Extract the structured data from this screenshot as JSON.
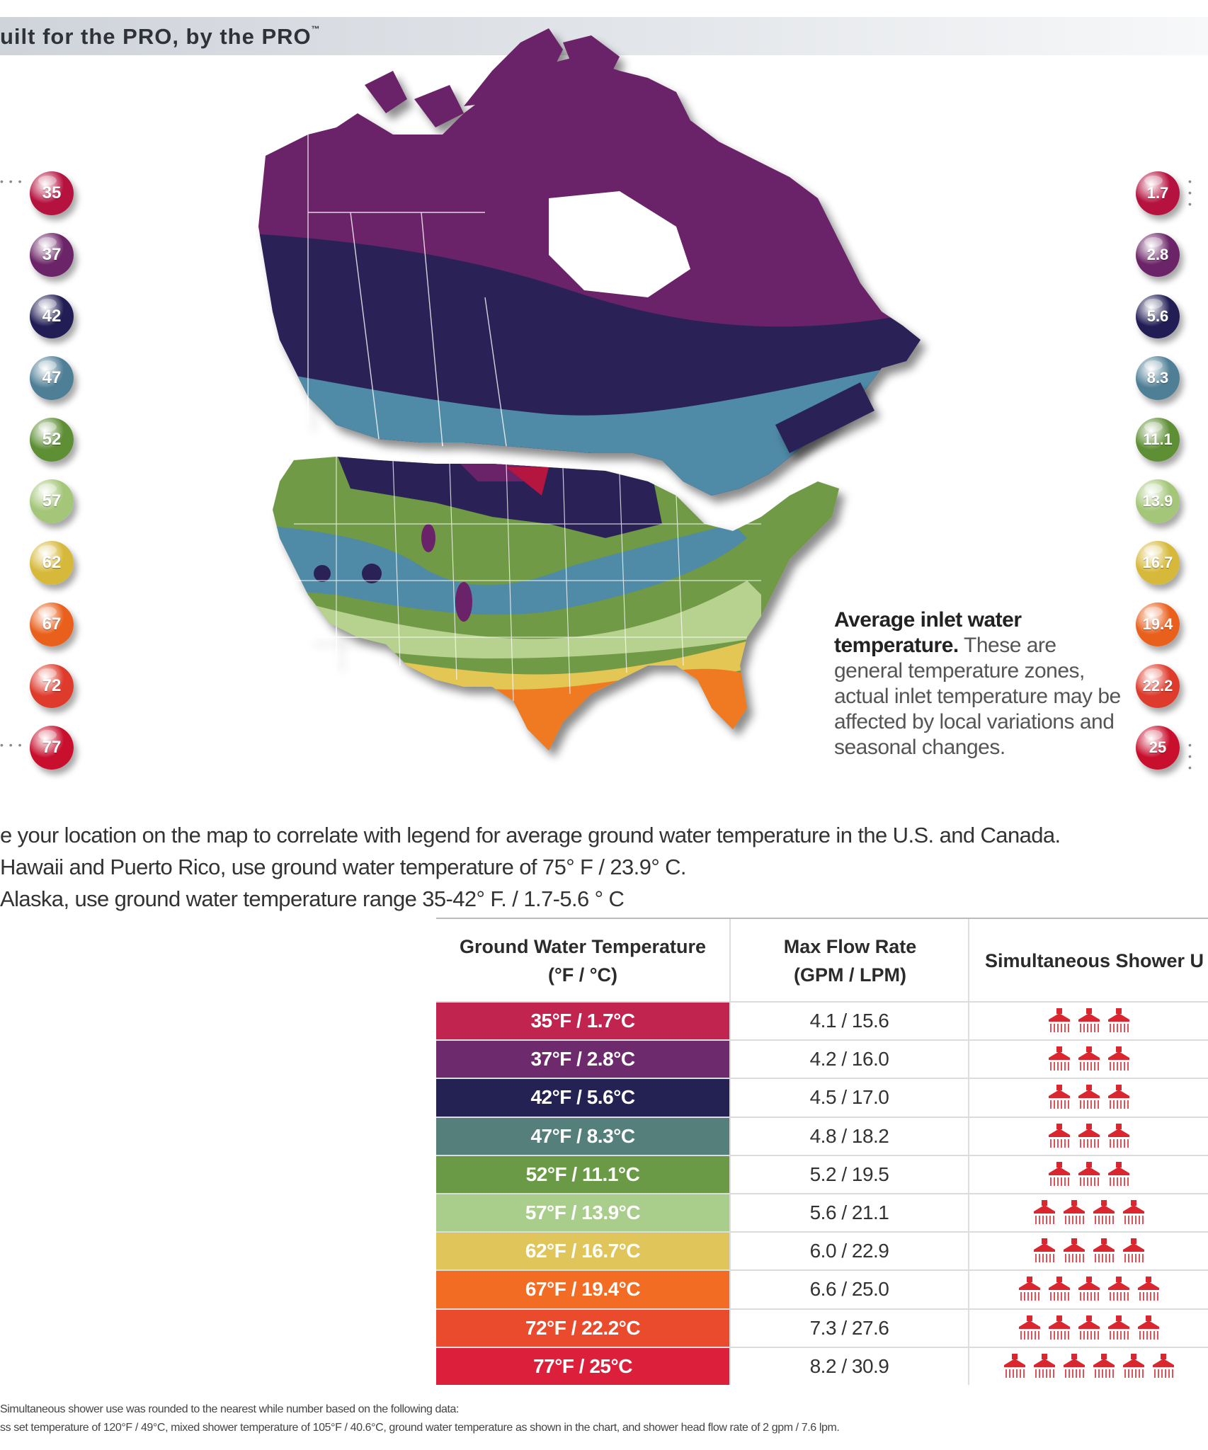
{
  "banner": {
    "tagline": "uilt for the PRO, by the PRO",
    "tm": "™"
  },
  "legend_left": [
    "35",
    "37",
    "42",
    "47",
    "52",
    "57",
    "62",
    "67",
    "72",
    "77"
  ],
  "legend_right": [
    "1.7",
    "2.8",
    "5.6",
    "8.3",
    "11.1",
    "13.9",
    "16.7",
    "19.4",
    "22.2",
    "25"
  ],
  "legend_colors": [
    "#b5123f",
    "#6b2467",
    "#221e55",
    "#4f7f96",
    "#5e8f35",
    "#a4c678",
    "#d6b93a",
    "#e9601d",
    "#de3b2c",
    "#c8102e"
  ],
  "caption": {
    "bold": "Average inlet water temperature.",
    "text": " These are general temperature zones, actual inlet temperature may be affected by local variations and seasonal changes."
  },
  "notes": [
    "e your location on the map to correlate with legend for average ground water temperature in the U.S. and Canada.",
    " Hawaii and Puerto Rico, use ground water temperature of 75° F / 23.9° C.",
    " Alaska, use ground water temperature range 35-42° F. / 1.7-5.6 ° C"
  ],
  "table": {
    "headers": {
      "temp_line1": "Ground Water Temperature",
      "temp_line2": "(°F / °C)",
      "flow_line1": "Max Flow Rate",
      "flow_line2": "(GPM / LPM)",
      "showers": "Simultaneous Shower U"
    },
    "rows": [
      {
        "temp": "35°F / 1.7°C",
        "flow": "4.1 / 15.6",
        "showers": 3,
        "color": "#c0244f"
      },
      {
        "temp": "37°F / 2.8°C",
        "flow": "4.2 / 16.0",
        "showers": 3,
        "color": "#6d2b6d"
      },
      {
        "temp": "42°F / 5.6°C",
        "flow": "4.5 / 17.0",
        "showers": 3,
        "color": "#242253"
      },
      {
        "temp": "47°F / 8.3°C",
        "flow": "4.8 / 18.2",
        "showers": 3,
        "color": "#557f7a"
      },
      {
        "temp": "52°F / 11.1°C",
        "flow": "5.2 / 19.5",
        "showers": 3,
        "color": "#6a9a45"
      },
      {
        "temp": "57°F / 13.9°C",
        "flow": "5.6 / 21.1",
        "showers": 4,
        "color": "#a9cd8a"
      },
      {
        "temp": "62°F / 16.7°C",
        "flow": "6.0 / 22.9",
        "showers": 4,
        "color": "#e0c65a"
      },
      {
        "temp": "67°F / 19.4°C",
        "flow": "6.6 / 25.0",
        "showers": 5,
        "color": "#f36c24"
      },
      {
        "temp": "72°F / 22.2°C",
        "flow": "7.3 / 27.6",
        "showers": 5,
        "color": "#ea4b2c"
      },
      {
        "temp": "77°F / 25°C",
        "flow": "8.2 / 30.9",
        "showers": 6,
        "color": "#dc1f3a"
      }
    ]
  },
  "footnote": {
    "line1": "Simultaneous shower use was rounded to the nearest while number based on the following data:",
    "line2": "ss set temperature of 120°F / 49°C, mixed shower temperature of 105°F / 40.6°C, ground water temperature as shown in the chart, and shower head flow rate of 2 gpm / 7.6 lpm."
  },
  "map": {
    "zone_colors": {
      "z35": "#6b2467",
      "z37": "#6b2467",
      "z42": "#2a2356",
      "z47": "#4f8aa6",
      "z52": "#6f9a45",
      "z57": "#b7d28f",
      "z62": "#e3c652",
      "z67": "#f07a22",
      "z72": "#e8432a",
      "z77": "#d9262f",
      "hole": "#ffffff"
    }
  }
}
